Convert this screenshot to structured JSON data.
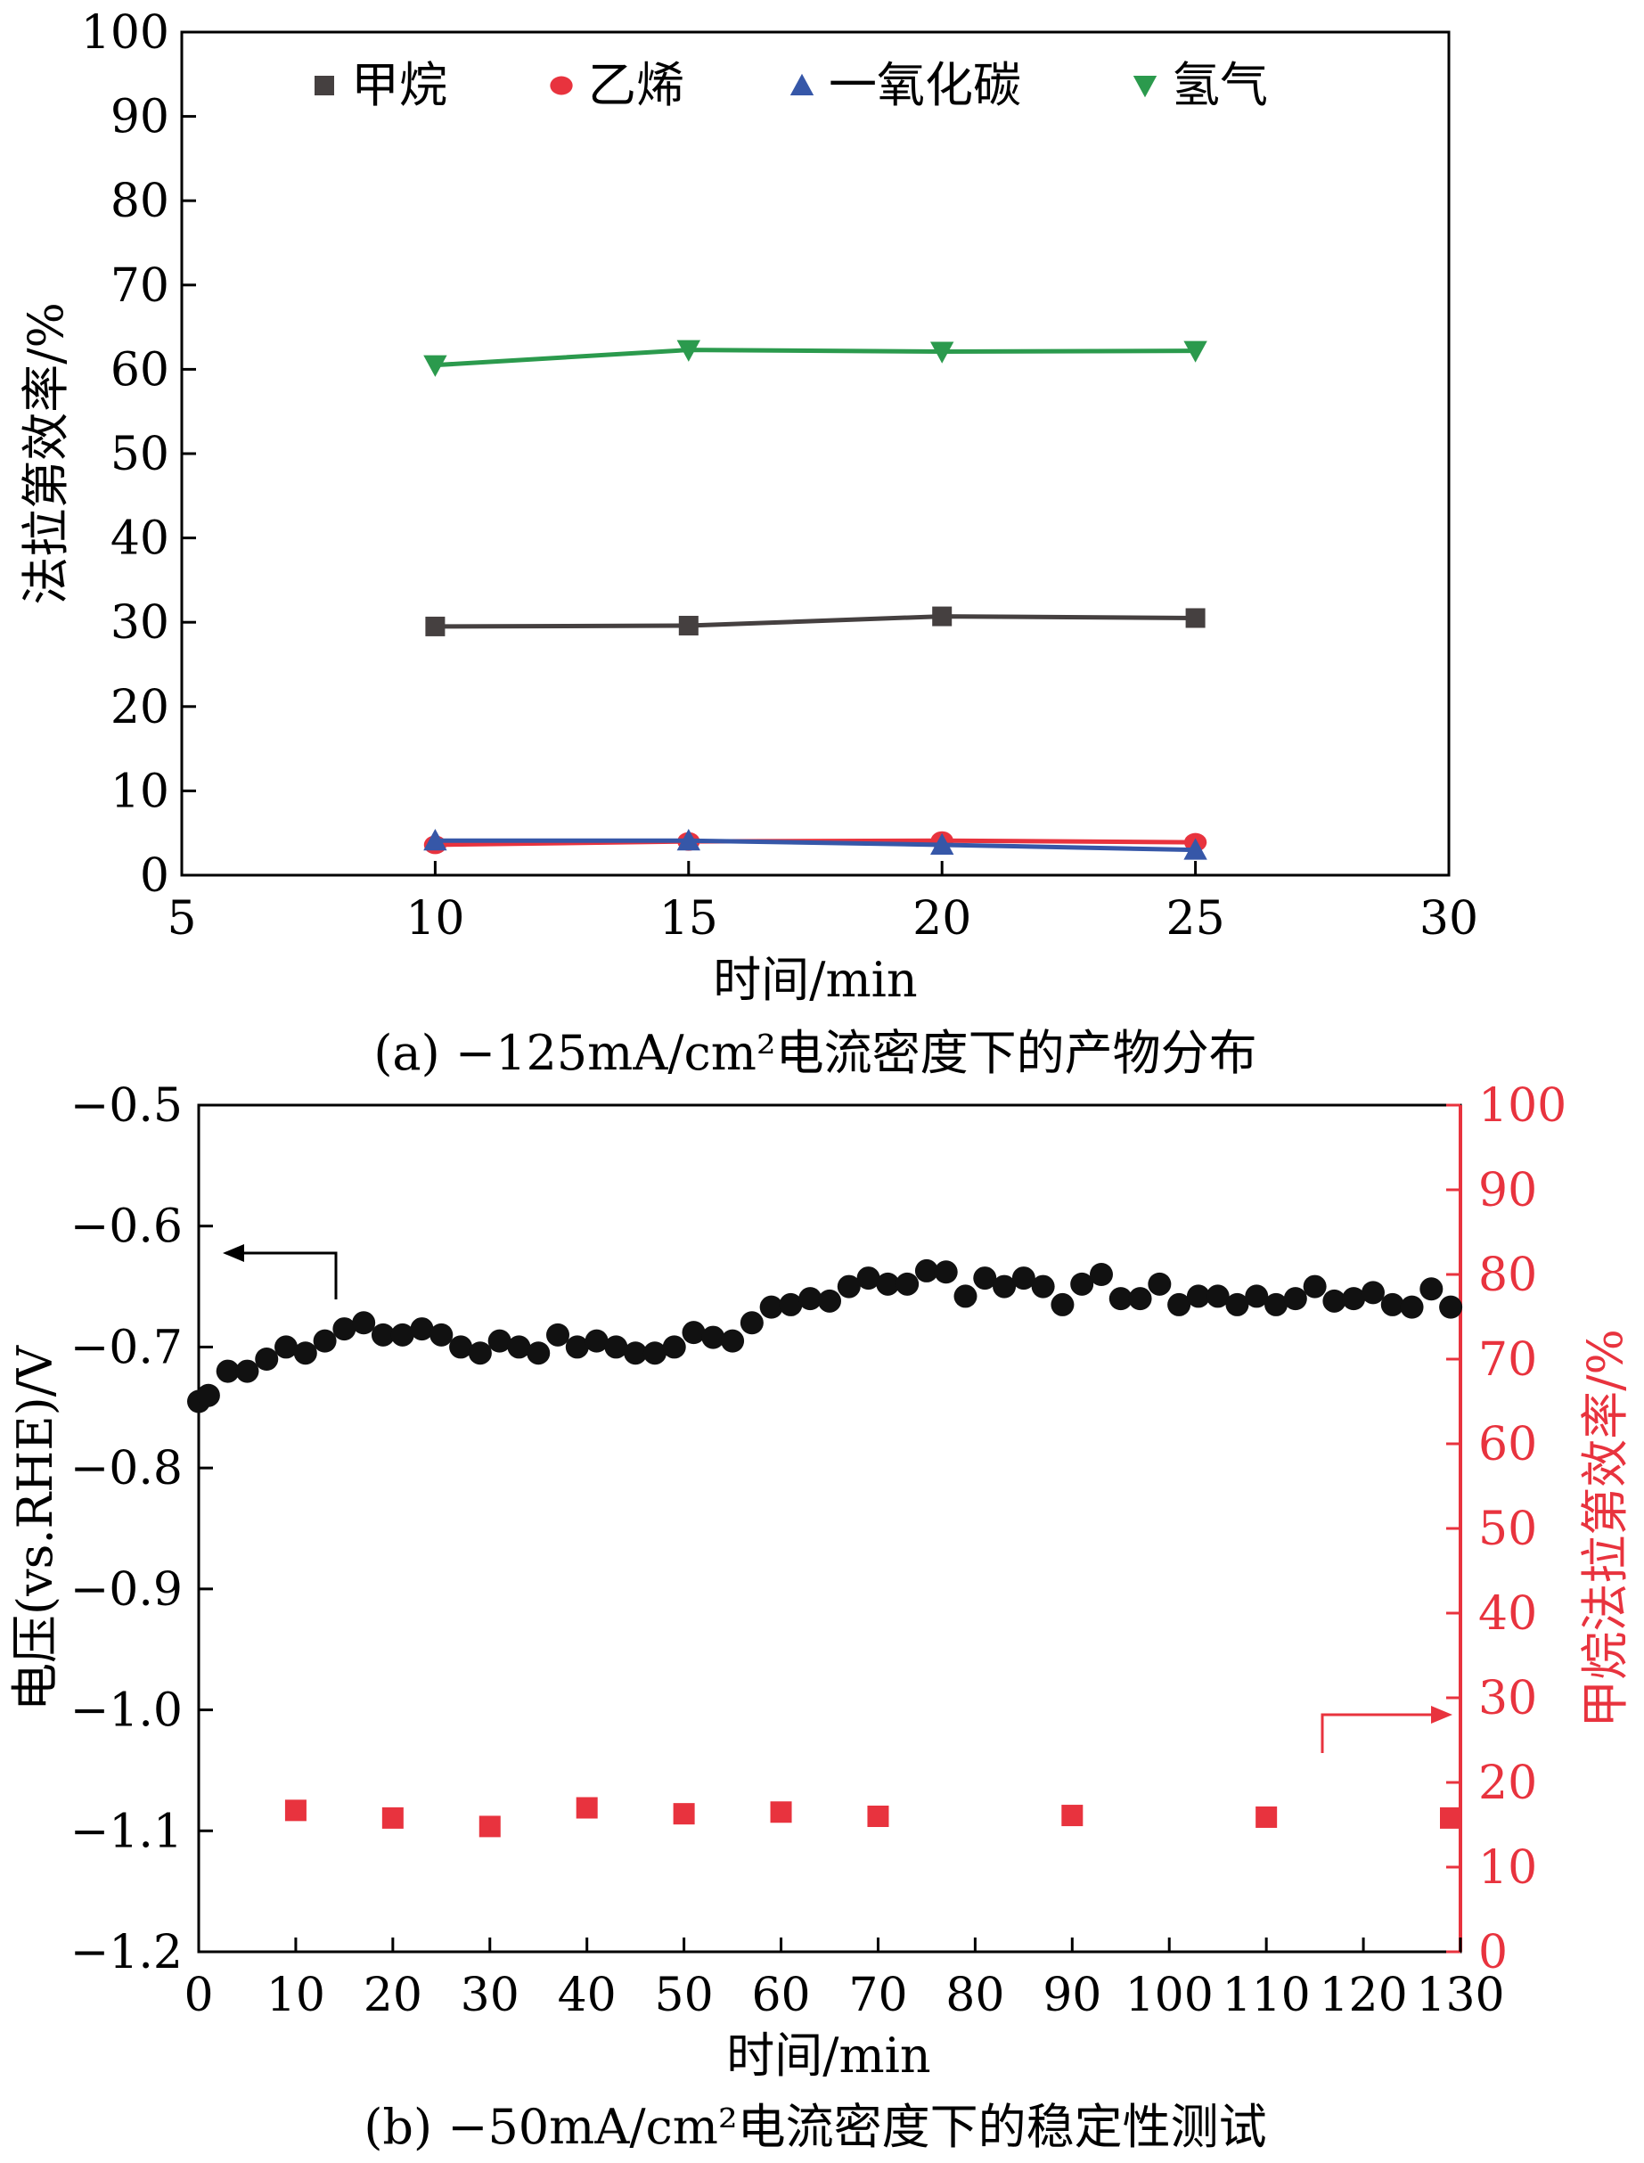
{
  "chart_data": [
    {
      "type": "line",
      "caption": "(a) −125mA/cm²电流密度下的产物分布",
      "xlabel": "时间/min",
      "ylabel": "法拉第效率/%",
      "xlim": [
        5,
        30
      ],
      "ylim": [
        0,
        100
      ],
      "xticks": [
        5,
        10,
        15,
        20,
        25,
        30
      ],
      "yticks": [
        0,
        10,
        20,
        30,
        40,
        50,
        60,
        70,
        80,
        90,
        100
      ],
      "x": [
        10,
        15,
        20,
        25
      ],
      "legend_position": "top",
      "series": [
        {
          "name": "甲烷",
          "marker": "square",
          "color": "#454040",
          "values": [
            29.5,
            29.6,
            30.7,
            30.5
          ]
        },
        {
          "name": "乙烯",
          "marker": "circle",
          "color": "#e8333e",
          "values": [
            3.6,
            4.0,
            4.1,
            3.9
          ]
        },
        {
          "name": "一氧化碳",
          "marker": "triangle-up",
          "color": "#3657a8",
          "values": [
            4.1,
            4.1,
            3.6,
            3.0
          ]
        },
        {
          "name": "氢气",
          "marker": "triangle-down",
          "color": "#2b9a4d",
          "values": [
            60.5,
            62.3,
            62.1,
            62.2
          ]
        }
      ]
    },
    {
      "type": "scatter",
      "caption": "(b) −50mA/cm²电流密度下的稳定性测试",
      "xlabel": "时间/min",
      "ylabel_left": "电压(vs.RHE)/V",
      "ylabel_right": "甲烷法拉第效率/%",
      "xlim": [
        0,
        130
      ],
      "ylim_left": [
        -1.2,
        -0.5
      ],
      "ylim_right": [
        0,
        100
      ],
      "xticks": [
        0,
        10,
        20,
        30,
        40,
        50,
        60,
        70,
        80,
        90,
        100,
        110,
        120,
        130
      ],
      "yticks_left": [
        "-0.5",
        "-0.6",
        "-0.7",
        "-0.8",
        "-0.9",
        "-1.0",
        "-1.1",
        "-1.2"
      ],
      "yticks_right": [
        0,
        10,
        20,
        30,
        40,
        50,
        60,
        70,
        80,
        90,
        100
      ],
      "left_axis_color": "#000000",
      "right_axis_color": "#e8333e",
      "voltage": {
        "color": "#111111",
        "x": [
          0,
          1,
          3,
          5,
          7,
          9,
          11,
          13,
          15,
          17,
          19,
          21,
          23,
          25,
          27,
          29,
          31,
          33,
          35,
          37,
          39,
          41,
          43,
          45,
          47,
          49,
          51,
          53,
          55,
          57,
          59,
          61,
          63,
          65,
          67,
          69,
          71,
          73,
          75,
          77,
          79,
          81,
          83,
          85,
          87,
          89,
          91,
          93,
          95,
          97,
          99,
          101,
          103,
          105,
          107,
          109,
          111,
          113,
          115,
          117,
          119,
          121,
          123,
          125,
          127,
          129
        ],
        "values": [
          -0.745,
          -0.74,
          -0.72,
          -0.72,
          -0.71,
          -0.7,
          -0.705,
          -0.695,
          -0.685,
          -0.68,
          -0.69,
          -0.69,
          -0.685,
          -0.69,
          -0.7,
          -0.705,
          -0.695,
          -0.7,
          -0.705,
          -0.69,
          -0.7,
          -0.695,
          -0.7,
          -0.705,
          -0.705,
          -0.7,
          -0.688,
          -0.692,
          -0.695,
          -0.68,
          -0.667,
          -0.665,
          -0.66,
          -0.662,
          -0.65,
          -0.643,
          -0.648,
          -0.648,
          -0.637,
          -0.638,
          -0.658,
          -0.643,
          -0.65,
          -0.643,
          -0.65,
          -0.665,
          -0.648,
          -0.64,
          -0.66,
          -0.66,
          -0.648,
          -0.665,
          -0.658,
          -0.658,
          -0.665,
          -0.658,
          -0.665,
          -0.66,
          -0.65,
          -0.662,
          -0.66,
          -0.655,
          -0.665,
          -0.667,
          -0.652,
          -0.667
        ]
      },
      "faradaic_efficiency": {
        "color": "#e8333e",
        "x": [
          10,
          20,
          30,
          40,
          50,
          60,
          70,
          90,
          110,
          130
        ],
        "values": [
          16.7,
          15.8,
          14.8,
          17.0,
          16.3,
          16.5,
          16.0,
          16.1,
          15.9,
          15.8
        ]
      }
    }
  ]
}
